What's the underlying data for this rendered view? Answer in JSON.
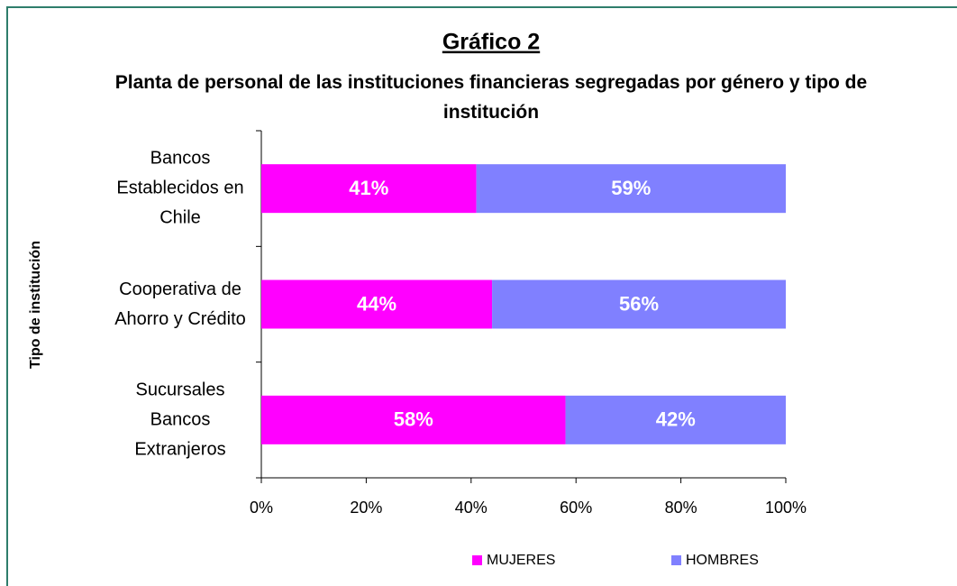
{
  "chart_data": {
    "type": "stacked_barh",
    "title": "Gráfico 2",
    "subtitle": "Planta de personal de las instituciones financieras segregadas por género y tipo de institución",
    "y_label": "Tipo de institución",
    "categories": [
      "Bancos Establecidos en Chile",
      "Cooperativa de Ahorro y Crédito",
      "Sucursales Bancos Extranjeros"
    ],
    "series": [
      {
        "name": "MUJERES",
        "color": "#ff00ff",
        "values": [
          41,
          44,
          58
        ],
        "value_labels": [
          "41%",
          "44%",
          "58%"
        ]
      },
      {
        "name": "HOMBRES",
        "color": "#8080ff",
        "values": [
          59,
          56,
          42
        ],
        "value_labels": [
          "59%",
          "56%",
          "42%"
        ]
      }
    ],
    "xlim": [
      0,
      100
    ],
    "xticks": [
      {
        "value": 0,
        "label": "0%"
      },
      {
        "value": 20,
        "label": "20%"
      },
      {
        "value": 40,
        "label": "40%"
      },
      {
        "value": 60,
        "label": "60%"
      },
      {
        "value": 80,
        "label": "80%"
      },
      {
        "value": 100,
        "label": "100%"
      }
    ],
    "legend": "bottom"
  }
}
